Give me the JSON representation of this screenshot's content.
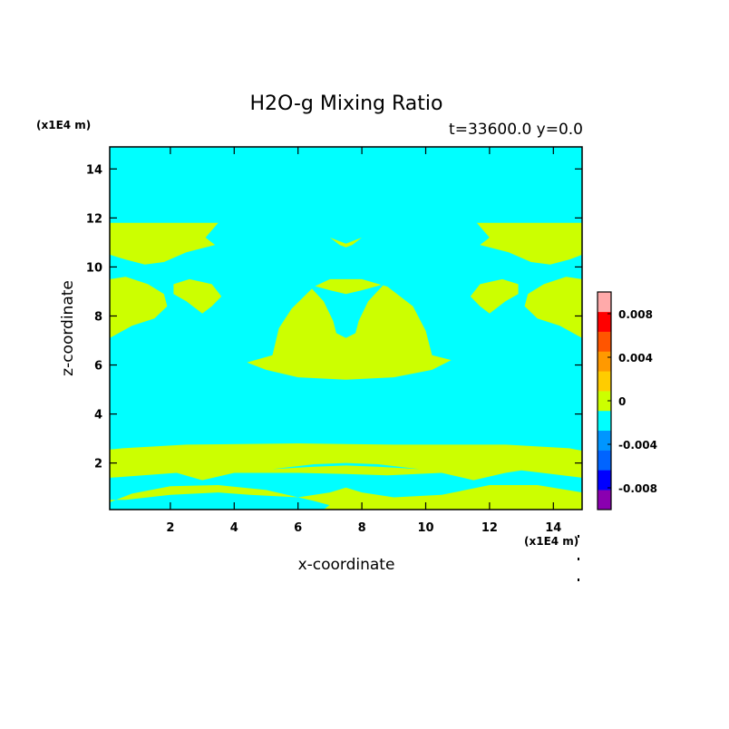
{
  "chart_data": {
    "type": "heatmap",
    "title": "H2O-g Mixing Ratio",
    "subtitle": "t=33600.0 y=0.0",
    "xlabel": "x-coordinate",
    "ylabel": "z-coordinate",
    "x_unit": "(x1E4 m)",
    "y_unit": "(x1E4 m)",
    "xlim": [
      0.1,
      14.9
    ],
    "ylim": [
      0.1,
      14.9
    ],
    "x_ticks": [
      "2",
      "4",
      "6",
      "8",
      "10",
      "12",
      "14"
    ],
    "y_ticks": [
      "2",
      "4",
      "6",
      "8",
      "10",
      "12",
      "14"
    ],
    "x_tick_values": [
      2,
      4,
      6,
      8,
      10,
      12,
      14
    ],
    "y_tick_values": [
      2,
      4,
      6,
      8,
      10,
      12,
      14
    ],
    "background_level_color": "#00ffff",
    "colorbar": {
      "levels": [
        -0.01,
        -0.008,
        -0.006,
        -0.004,
        -0.002,
        0,
        0.002,
        0.004,
        0.006,
        0.008,
        0.01
      ],
      "colors": [
        "#8a00b0",
        "#0000ff",
        "#0064ff",
        "#0096ff",
        "#00ffff",
        "#ccff00",
        "#ffcc00",
        "#ff9900",
        "#ff5500",
        "#ff0000",
        "#ffaaaa"
      ],
      "tick_labels": [
        "0.008",
        "0.004",
        "0",
        "-0.004",
        "-0.008"
      ],
      "tick_values": [
        0.008,
        0.004,
        0,
        -0.004,
        -0.008
      ]
    },
    "regions": [
      {
        "name": "lower-band",
        "level_color": "#ccff00",
        "points": [
          [
            0.1,
            2.55
          ],
          [
            0.5,
            2.6
          ],
          [
            2.5,
            2.75
          ],
          [
            6,
            2.8
          ],
          [
            9,
            2.75
          ],
          [
            12.5,
            2.75
          ],
          [
            14.5,
            2.6
          ],
          [
            14.9,
            2.5
          ],
          [
            14.9,
            1.4
          ],
          [
            13,
            1.7
          ],
          [
            12.5,
            1.6
          ],
          [
            11.5,
            1.3
          ],
          [
            10.5,
            1.6
          ],
          [
            8.8,
            1.5
          ],
          [
            7.5,
            1.55
          ],
          [
            6,
            1.6
          ],
          [
            4,
            1.6
          ],
          [
            3,
            1.3
          ],
          [
            2.2,
            1.6
          ],
          [
            0.1,
            1.4
          ]
        ]
      },
      {
        "name": "bottom-band",
        "level_color": "#ccff00",
        "points": [
          [
            0.1,
            0.4
          ],
          [
            0.8,
            0.75
          ],
          [
            2,
            1.05
          ],
          [
            3.5,
            1.1
          ],
          [
            5,
            0.9
          ],
          [
            6.5,
            0.45
          ],
          [
            7.5,
            0.1
          ],
          [
            14.9,
            0.1
          ],
          [
            14.9,
            0.8
          ],
          [
            13.5,
            1.1
          ],
          [
            12,
            1.1
          ],
          [
            10.5,
            0.7
          ],
          [
            9,
            0.6
          ],
          [
            8,
            0.8
          ],
          [
            7.5,
            1
          ],
          [
            7,
            0.8
          ],
          [
            6,
            0.6
          ],
          [
            4.5,
            0.7
          ],
          [
            3.5,
            0.8
          ],
          [
            2,
            0.7
          ],
          [
            0.6,
            0.5
          ],
          [
            0.1,
            0.5
          ]
        ]
      },
      {
        "name": "bottom-center-arch",
        "level_color": "#ccff00",
        "points": [
          [
            6.8,
            0.1
          ],
          [
            7.2,
            0.5
          ],
          [
            7.5,
            0.65
          ],
          [
            7.8,
            0.5
          ],
          [
            8.2,
            0.1
          ]
        ]
      },
      {
        "name": "thin-ribbon",
        "level_color": "#ccff00",
        "points": [
          [
            5.6,
            1.6
          ],
          [
            6.5,
            1.8
          ],
          [
            7.5,
            1.85
          ],
          [
            8.5,
            1.8
          ],
          [
            9.5,
            1.65
          ],
          [
            8.5,
            1.7
          ],
          [
            7.5,
            1.72
          ],
          [
            6.5,
            1.7
          ]
        ]
      },
      {
        "name": "central-blob",
        "level_color": "#ccff00",
        "points": [
          [
            4.4,
            6.1
          ],
          [
            5.2,
            6.4
          ],
          [
            5.4,
            7.5
          ],
          [
            5.8,
            8.3
          ],
          [
            6.5,
            9.2
          ],
          [
            7,
            9.5
          ],
          [
            8,
            9.5
          ],
          [
            8.8,
            9.2
          ],
          [
            9.6,
            8.4
          ],
          [
            10,
            7.4
          ],
          [
            10.2,
            6.4
          ],
          [
            10.8,
            6.2
          ],
          [
            10.2,
            5.8
          ],
          [
            9,
            5.5
          ],
          [
            7.5,
            5.4
          ],
          [
            6,
            5.5
          ],
          [
            5,
            5.8
          ]
        ]
      },
      {
        "name": "left-upper",
        "level_color": "#ccff00",
        "points": [
          [
            0.1,
            11.8
          ],
          [
            3.5,
            11.8
          ],
          [
            3.1,
            11.2
          ],
          [
            3.4,
            10.9
          ],
          [
            2.5,
            10.6
          ],
          [
            1.8,
            10.2
          ],
          [
            1.2,
            10.1
          ],
          [
            0.6,
            10.3
          ],
          [
            0.1,
            10.5
          ]
        ]
      },
      {
        "name": "left-side",
        "level_color": "#ccff00",
        "points": [
          [
            0.1,
            9.5
          ],
          [
            0.6,
            9.6
          ],
          [
            1.3,
            9.3
          ],
          [
            1.8,
            8.9
          ],
          [
            1.9,
            8.4
          ],
          [
            1.5,
            7.9
          ],
          [
            0.8,
            7.6
          ],
          [
            0.1,
            7.1
          ]
        ]
      },
      {
        "name": "left-small",
        "level_color": "#ccff00",
        "points": [
          [
            2.1,
            9.3
          ],
          [
            2.6,
            9.5
          ],
          [
            3.3,
            9.3
          ],
          [
            3.6,
            8.8
          ],
          [
            3.3,
            8.4
          ],
          [
            3,
            8.1
          ],
          [
            2.5,
            8.6
          ],
          [
            2.1,
            8.9
          ]
        ]
      },
      {
        "name": "right-upper",
        "level_color": "#ccff00",
        "points": [
          [
            14.9,
            11.8
          ],
          [
            11.6,
            11.8
          ],
          [
            12,
            11.2
          ],
          [
            11.7,
            10.9
          ],
          [
            12.6,
            10.6
          ],
          [
            13.3,
            10.2
          ],
          [
            13.9,
            10.1
          ],
          [
            14.5,
            10.3
          ],
          [
            14.9,
            10.5
          ]
        ]
      },
      {
        "name": "right-side",
        "level_color": "#ccff00",
        "points": [
          [
            14.9,
            9.5
          ],
          [
            14.4,
            9.6
          ],
          [
            13.7,
            9.3
          ],
          [
            13.2,
            8.9
          ],
          [
            13.1,
            8.4
          ],
          [
            13.5,
            7.9
          ],
          [
            14.2,
            7.6
          ],
          [
            14.9,
            7.1
          ]
        ]
      },
      {
        "name": "right-small",
        "level_color": "#ccff00",
        "points": [
          [
            12.9,
            9.3
          ],
          [
            12.4,
            9.5
          ],
          [
            11.7,
            9.3
          ],
          [
            11.4,
            8.8
          ],
          [
            11.7,
            8.4
          ],
          [
            12,
            8.1
          ],
          [
            12.5,
            8.6
          ],
          [
            12.9,
            8.9
          ]
        ]
      },
      {
        "name": "top-small",
        "level_color": "#ccff00",
        "points": [
          [
            7,
            11.2
          ],
          [
            7.3,
            10.9
          ],
          [
            7.5,
            10.8
          ],
          [
            7.7,
            10.9
          ],
          [
            8,
            11.2
          ],
          [
            7.5,
            10.95
          ]
        ]
      }
    ],
    "holes": [
      {
        "name": "central-inner",
        "level_color": "#00ffff",
        "points": [
          [
            6.3,
            9.3
          ],
          [
            7,
            9.05
          ],
          [
            7.5,
            8.9
          ],
          [
            8,
            9.05
          ],
          [
            8.7,
            9.3
          ],
          [
            8.2,
            8.6
          ],
          [
            7.9,
            7.8
          ],
          [
            7.8,
            7.3
          ],
          [
            7.5,
            7.1
          ],
          [
            7.2,
            7.3
          ],
          [
            7.1,
            7.8
          ],
          [
            6.8,
            8.6
          ]
        ]
      },
      {
        "name": "lower-band-gap",
        "level_color": "#00ffff",
        "points": [
          [
            5.2,
            1.75
          ],
          [
            6.5,
            1.95
          ],
          [
            7.5,
            2
          ],
          [
            8.5,
            1.95
          ],
          [
            9.8,
            1.75
          ],
          [
            8.5,
            1.85
          ],
          [
            7.5,
            1.9
          ],
          [
            6.5,
            1.85
          ]
        ]
      }
    ]
  }
}
